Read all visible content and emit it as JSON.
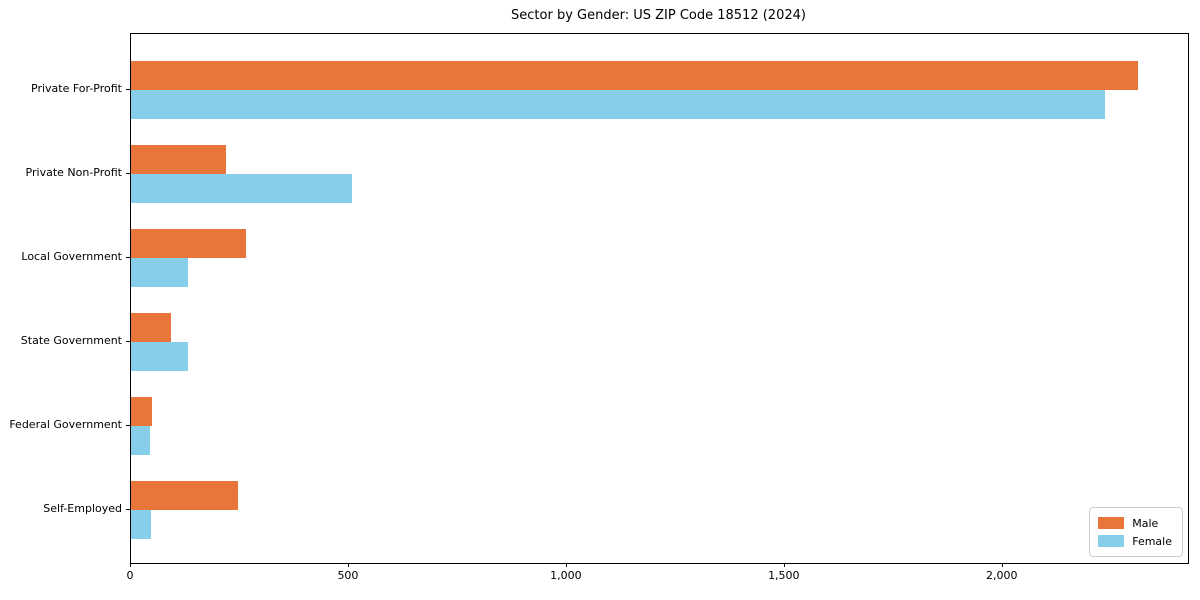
{
  "chart_data": {
    "type": "bar",
    "orientation": "horizontal",
    "title": "Sector by Gender: US ZIP Code 18512 (2024)",
    "categories": [
      "Private For-Profit",
      "Private Non-Profit",
      "Local Government",
      "State Government",
      "Federal Government",
      "Self-Employed"
    ],
    "series": [
      {
        "name": "Male",
        "color": "#E8763B",
        "values": [
          2310,
          218,
          264,
          92,
          48,
          246
        ]
      },
      {
        "name": "Female",
        "color": "#87CEEB",
        "values": [
          2235,
          508,
          131,
          131,
          44,
          46
        ]
      }
    ],
    "xlabel": "",
    "ylabel": "",
    "xlim": [
      0,
      2425
    ],
    "xticks": [
      0,
      500,
      1000,
      1500,
      2000
    ],
    "xtick_labels": [
      "0",
      "500",
      "1,000",
      "1,500",
      "2,000"
    ],
    "grid": false,
    "legend_position": "lower right",
    "axes_border": true,
    "background_color": "#ffffff",
    "text_color": "#000000"
  }
}
